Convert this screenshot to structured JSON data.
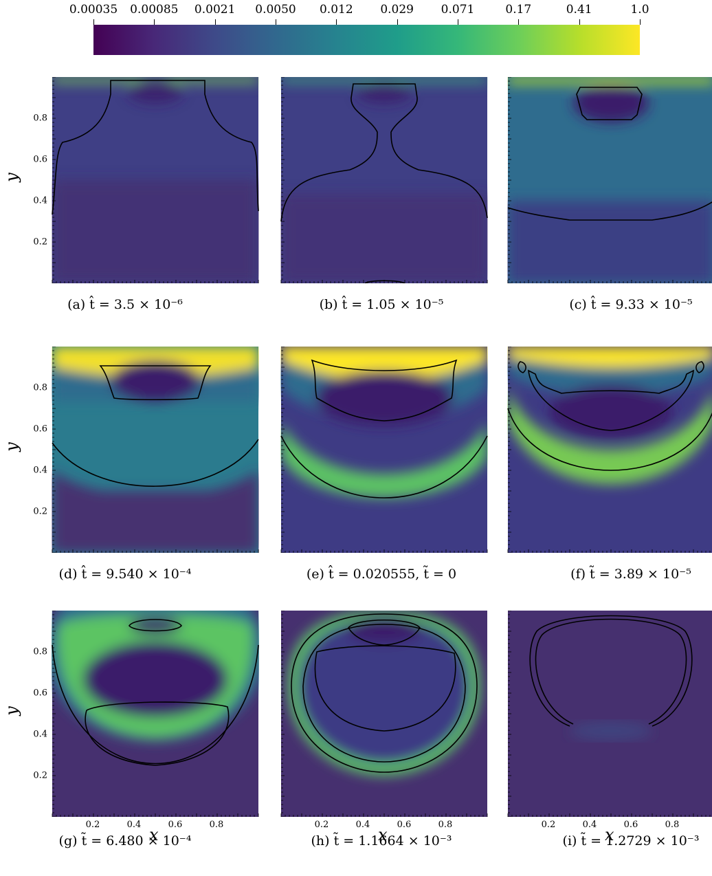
{
  "colorbar": {
    "ticks": [
      "0.00035",
      "0.00085",
      "0.0021",
      "0.0050",
      "0.012",
      "0.029",
      "0.071",
      "0.17",
      "0.41",
      "1.0"
    ],
    "stops": [
      "#440154",
      "#482878",
      "#3e4a89",
      "#31688e",
      "#26838f",
      "#1f9d8a",
      "#35b779",
      "#6cce5a",
      "#b6de2b",
      "#fde725"
    ]
  },
  "axes": {
    "ylabel": "y",
    "xlabel": "x",
    "yticks": [
      "0.8",
      "0.6",
      "0.4",
      "0.2"
    ],
    "xticks": [
      "0.2",
      "0.4",
      "0.6",
      "0.8"
    ]
  },
  "panels": [
    {
      "caption": "(a) t̂ = 3.5 × 10⁻⁶"
    },
    {
      "caption": "(b) t̂ = 1.05 × 10⁻⁵"
    },
    {
      "caption": "(c) t̂ = 9.33 × 10⁻⁵"
    },
    {
      "caption": "(d) t̂ = 9.540 × 10⁻⁴"
    },
    {
      "caption": "(e) t̂ = 0.020555,    t̃ = 0"
    },
    {
      "caption": "(f) t̃ = 3.89 × 10⁻⁵"
    },
    {
      "caption": "(g) t̃ = 6.480 × 10⁻⁴"
    },
    {
      "caption": "(h) t̃ = 1.1664 × 10⁻³"
    },
    {
      "caption": "(i) t̃ = 1.2729 × 10⁻³"
    }
  ]
}
